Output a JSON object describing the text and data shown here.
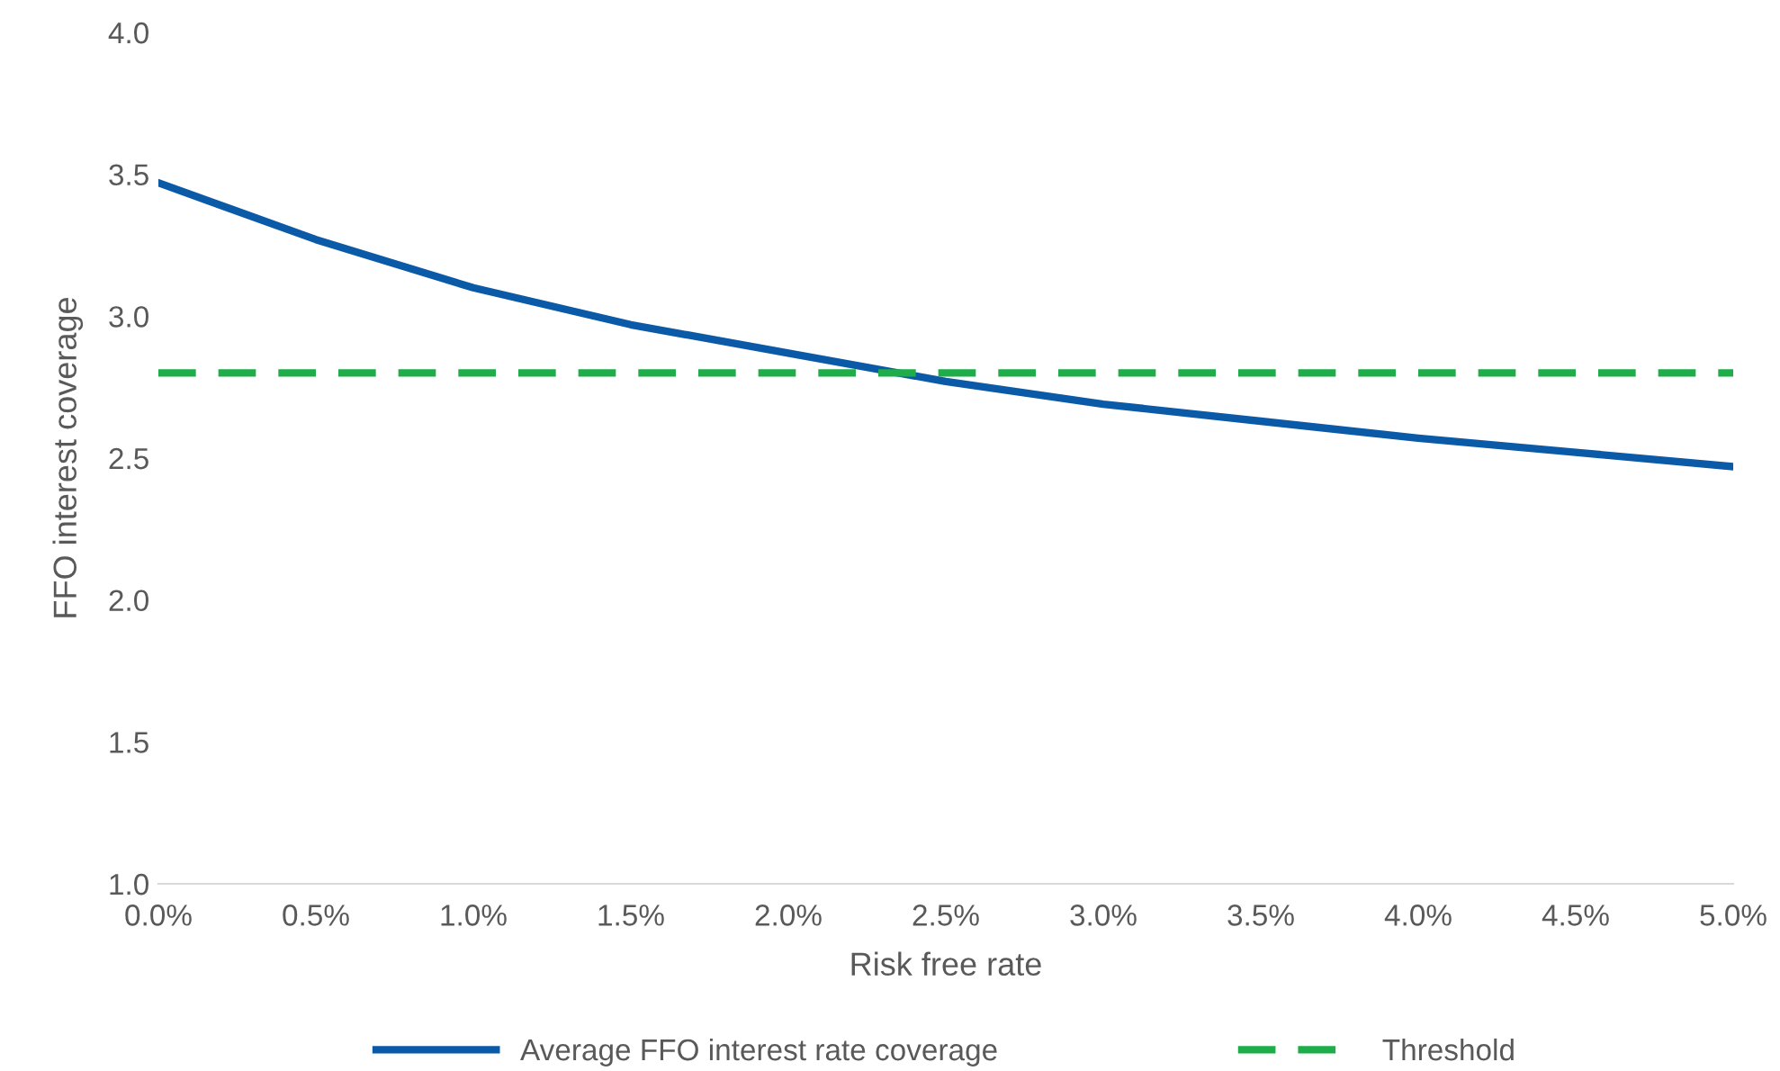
{
  "chart_data": {
    "type": "line",
    "xlabel": "Risk free rate",
    "ylabel": "FFO interest coverage",
    "x": [
      0,
      0.5,
      1.0,
      1.5,
      2.0,
      2.5,
      3.0,
      3.5,
      4.0,
      4.5,
      5.0
    ],
    "series": [
      {
        "name": "Average FFO interest rate coverage",
        "color": "#0b5aa8",
        "line_style": "solid",
        "values": [
          3.47,
          3.27,
          3.1,
          2.97,
          2.87,
          2.77,
          2.69,
          2.63,
          2.57,
          2.52,
          2.47
        ]
      },
      {
        "name": "Threshold",
        "color": "#1ead48",
        "line_style": "dashed",
        "values": [
          2.8,
          2.8,
          2.8,
          2.8,
          2.8,
          2.8,
          2.8,
          2.8,
          2.8,
          2.8,
          2.8
        ]
      }
    ],
    "xlim": [
      0,
      5.0
    ],
    "xticks": [
      {
        "value": 0,
        "label": "0.0%"
      },
      {
        "value": 0.5,
        "label": "0.5%"
      },
      {
        "value": 1.0,
        "label": "1.0%"
      },
      {
        "value": 1.5,
        "label": "1.5%"
      },
      {
        "value": 2.0,
        "label": "2.0%"
      },
      {
        "value": 2.5,
        "label": "2.5%"
      },
      {
        "value": 3.0,
        "label": "3.0%"
      },
      {
        "value": 3.5,
        "label": "3.5%"
      },
      {
        "value": 4.0,
        "label": "4.0%"
      },
      {
        "value": 4.5,
        "label": "4.5%"
      },
      {
        "value": 5.0,
        "label": "5.0%"
      }
    ],
    "ylim": [
      1.0,
      4.0
    ],
    "yticks": [
      {
        "value": 1.0,
        "label": "1.0"
      },
      {
        "value": 1.5,
        "label": "1.5"
      },
      {
        "value": 2.0,
        "label": "2.0"
      },
      {
        "value": 2.5,
        "label": "2.5"
      },
      {
        "value": 3.0,
        "label": "3.0"
      },
      {
        "value": 3.5,
        "label": "3.5"
      },
      {
        "value": 4.0,
        "label": "4.0"
      }
    ],
    "grid": false,
    "legend": "bottom",
    "marker": "none"
  }
}
